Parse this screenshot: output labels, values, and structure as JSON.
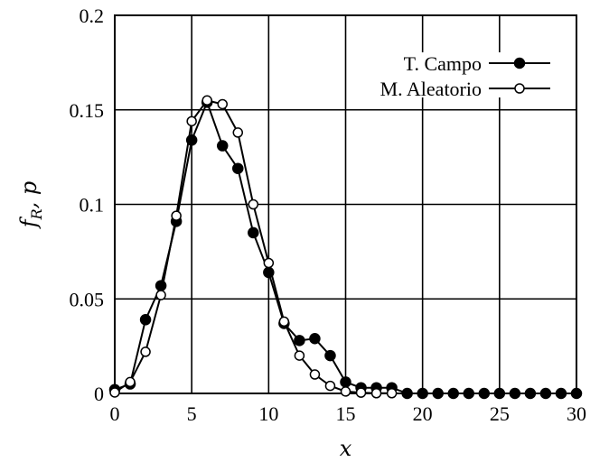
{
  "chart_data": {
    "type": "line",
    "title": "",
    "xlabel": "x",
    "ylabel": "f_R, p",
    "xlim": [
      0,
      30
    ],
    "ylim": [
      0,
      0.2
    ],
    "xticks": [
      0,
      5,
      10,
      15,
      20,
      25,
      30
    ],
    "xtick_labels": [
      "0",
      "5",
      "10",
      "15",
      "20",
      "25",
      "30"
    ],
    "yticks": [
      0,
      0.05,
      0.1,
      0.15,
      0.2
    ],
    "ytick_labels": [
      "0",
      "0.05",
      "0.1",
      "0.15",
      "0.2"
    ],
    "grid": true,
    "legend_position": "top-right",
    "series": [
      {
        "name": "T. Campo",
        "marker": "filled-circle",
        "color": "#000000",
        "x": [
          0,
          1,
          2,
          3,
          4,
          5,
          6,
          7,
          8,
          9,
          10,
          11,
          12,
          13,
          14,
          15,
          16,
          17,
          18,
          19,
          20,
          21,
          22,
          23,
          24,
          25,
          26,
          27,
          28,
          29,
          30
        ],
        "y": [
          0.002,
          0.005,
          0.039,
          0.057,
          0.091,
          0.134,
          0.154,
          0.131,
          0.119,
          0.085,
          0.064,
          0.037,
          0.028,
          0.029,
          0.02,
          0.006,
          0.003,
          0.003,
          0.003,
          0,
          0,
          0,
          0,
          0,
          0,
          0,
          0,
          0,
          0,
          0,
          0
        ]
      },
      {
        "name": "M. Aleatorio",
        "marker": "open-circle",
        "color": "#000000",
        "x": [
          0,
          1,
          2,
          3,
          4,
          5,
          6,
          7,
          8,
          9,
          10,
          11,
          12,
          13,
          14,
          15,
          16,
          17,
          18
        ],
        "y": [
          0.0005,
          0.006,
          0.022,
          0.052,
          0.094,
          0.144,
          0.155,
          0.153,
          0.138,
          0.1,
          0.069,
          0.038,
          0.02,
          0.01,
          0.004,
          0.001,
          0.0004,
          0.0001,
          0.0001
        ]
      }
    ]
  }
}
